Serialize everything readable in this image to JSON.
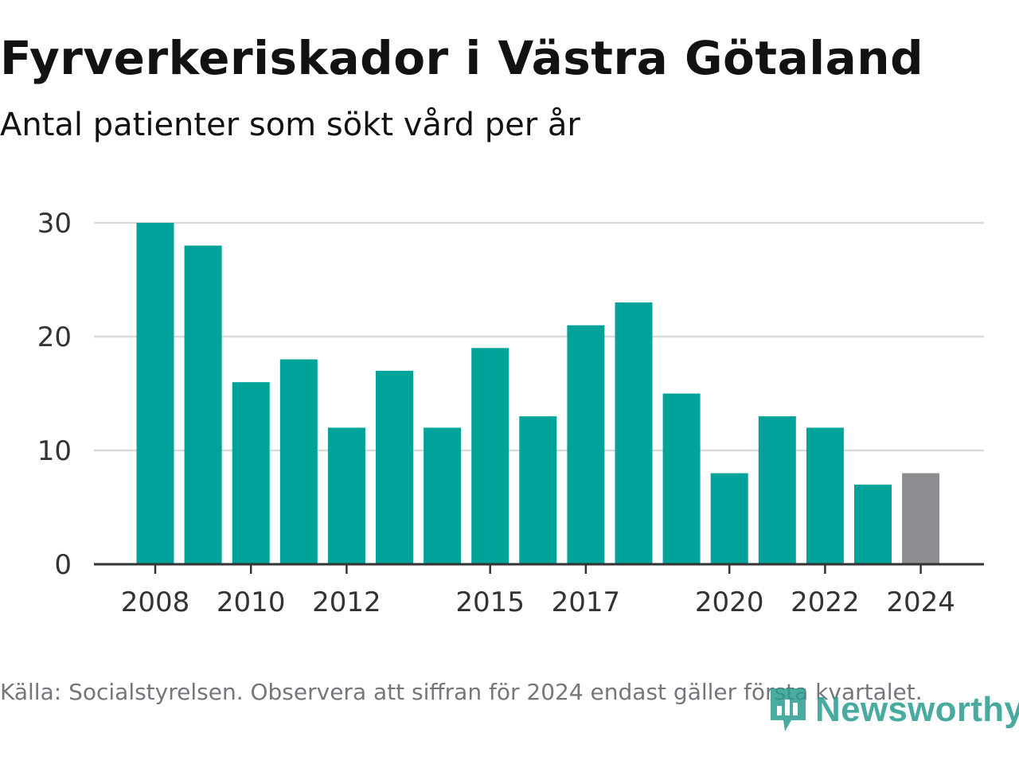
{
  "header": {
    "title": "Fyrverkeriskador i Västra Götaland",
    "subtitle": "Antal patienter som sökt vård per år"
  },
  "footer": {
    "source": "Källa: Socialstyrelsen. Observera att siffran för 2024 endast gäller första kvartalet.",
    "logo_text": "Newsworthy",
    "logo_icon": "newsworthy-logo-icon"
  },
  "colors": {
    "bar": "#00a39a",
    "bar_highlight": "#8c8d91",
    "grid": "#d9d9d9",
    "axis": "#333333",
    "tick_text": "#333333",
    "logo": "#2a9d8f"
  },
  "chart_data": {
    "type": "bar",
    "categories": [
      "2008",
      "2009",
      "2010",
      "2011",
      "2012",
      "2013",
      "2014",
      "2015",
      "2016",
      "2017",
      "2018",
      "2019",
      "2020",
      "2021",
      "2022",
      "2023",
      "2024"
    ],
    "values": [
      30,
      28,
      16,
      18,
      12,
      17,
      12,
      19,
      13,
      21,
      23,
      15,
      8,
      13,
      12,
      7,
      8
    ],
    "highlight_category": "2024",
    "x_tick_labels": [
      "2008",
      "2010",
      "2012",
      "2015",
      "2017",
      "2020",
      "2022",
      "2024"
    ],
    "y_ticks": [
      0,
      10,
      20,
      30
    ],
    "ylim": [
      0,
      30
    ],
    "grid": true,
    "title": "Fyrverkeriskador i Västra Götaland",
    "subtitle": "Antal patienter som sökt vård per år",
    "xlabel": "",
    "ylabel": ""
  }
}
